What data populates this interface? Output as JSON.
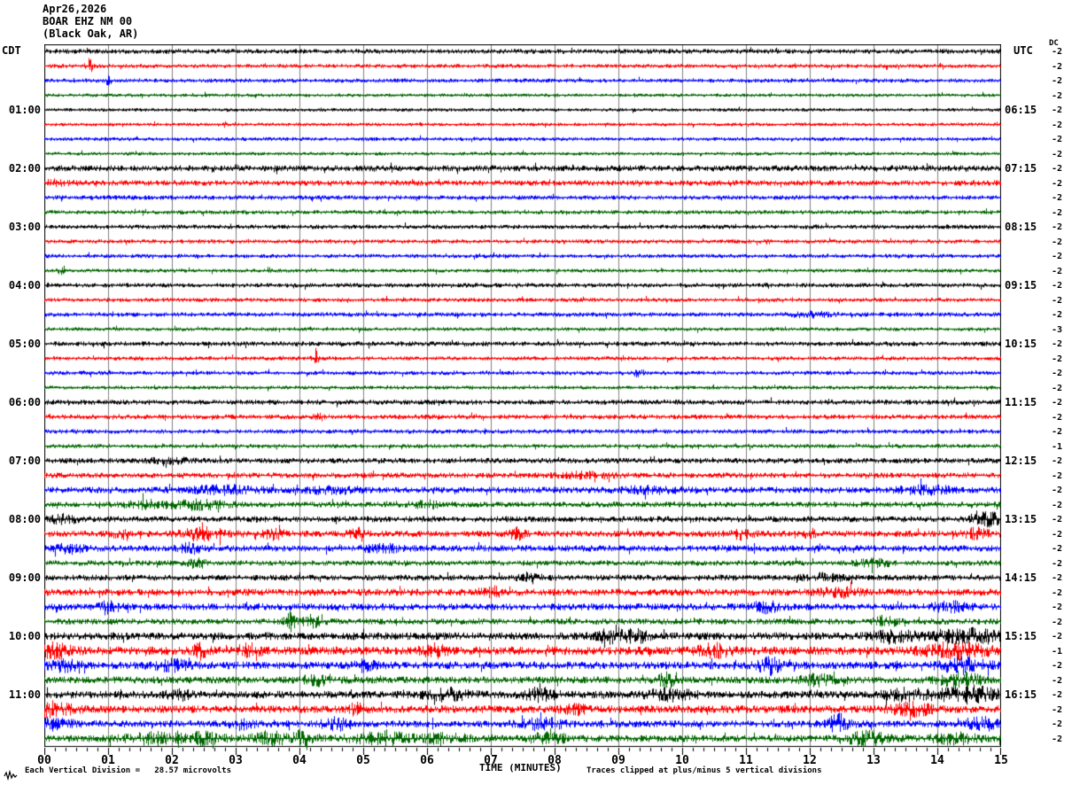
{
  "header": {
    "date": "Apr26,2026",
    "station": "BOAR EHZ NM 00",
    "location": "(Black Oak, AR)"
  },
  "axes": {
    "left_label": "CDT",
    "right_label": "UTC",
    "dc_label": "DC",
    "left_hour_labels": [
      "01:00",
      "02:00",
      "03:00",
      "04:00",
      "05:00",
      "06:00",
      "07:00",
      "08:00",
      "09:00",
      "10:00",
      "11:00"
    ],
    "right_hour_labels": [
      "06:15",
      "07:15",
      "08:15",
      "09:15",
      "10:15",
      "11:15",
      "12:15",
      "13:15",
      "14:15",
      "15:15",
      "16:15"
    ],
    "x_tick_labels": [
      "00",
      "01",
      "02",
      "03",
      "04",
      "05",
      "06",
      "07",
      "08",
      "09",
      "10",
      "11",
      "12",
      "13",
      "14",
      "15"
    ],
    "x_title": "TIME (MINUTES)"
  },
  "footer": {
    "scale_note": "Each Vertical Division =   28.57 microvolts",
    "clip_note": "Traces clipped at plus/minus 5 vertical divisions"
  },
  "colors": {
    "black": "#000000",
    "red": "#ff0000",
    "blue": "#0000ff",
    "green": "#006600",
    "grid": "#7f7f7f"
  },
  "chart_data": {
    "type": "line",
    "title": "BOAR EHZ NM 00 (Black Oak, AR) webicorder, Apr26,2026",
    "x_axis": {
      "title": "TIME (MINUTES)",
      "range_minutes": [
        0,
        15
      ],
      "major_tick_minutes": 1,
      "minor_tick_seconds": 10,
      "grid": "vertical-per-minute"
    },
    "rows_note": "48 rows of 15 minutes each; color cycles black/red/blue/green; amp = baseline noise envelope (px), bursts = [minute, sigma_minutes, extra_amp_px]; dc = DC offset value printed at right",
    "rows": [
      {
        "cdt_start": "00:00",
        "color": "black",
        "dc": -2,
        "amp": 1.5,
        "bursts": []
      },
      {
        "cdt_start": "00:15",
        "color": "red",
        "dc": -2,
        "amp": 1.3,
        "bursts": [
          [
            0.7,
            0.04,
            4.0
          ]
        ]
      },
      {
        "cdt_start": "00:30",
        "color": "blue",
        "dc": -2,
        "amp": 1.3,
        "bursts": [
          [
            1.0,
            0.03,
            2.5
          ]
        ]
      },
      {
        "cdt_start": "00:45",
        "color": "green",
        "dc": -2,
        "amp": 1.1,
        "bursts": []
      },
      {
        "cdt_start": "01:00",
        "color": "black",
        "dc": -2,
        "amp": 1.1,
        "bursts": []
      },
      {
        "cdt_start": "01:15",
        "color": "red",
        "dc": -2,
        "amp": 1.1,
        "bursts": []
      },
      {
        "cdt_start": "01:30",
        "color": "blue",
        "dc": -2,
        "amp": 1.2,
        "bursts": []
      },
      {
        "cdt_start": "01:45",
        "color": "green",
        "dc": -2,
        "amp": 1.1,
        "bursts": []
      },
      {
        "cdt_start": "02:00",
        "color": "black",
        "dc": -2,
        "amp": 1.9,
        "bursts": []
      },
      {
        "cdt_start": "02:15",
        "color": "red",
        "dc": -2,
        "amp": 1.7,
        "bursts": [
          [
            0.15,
            0.15,
            1.5
          ]
        ]
      },
      {
        "cdt_start": "02:30",
        "color": "blue",
        "dc": -2,
        "amp": 1.4,
        "bursts": []
      },
      {
        "cdt_start": "02:45",
        "color": "green",
        "dc": -2,
        "amp": 1.3,
        "bursts": []
      },
      {
        "cdt_start": "03:00",
        "color": "black",
        "dc": -2,
        "amp": 1.4,
        "bursts": []
      },
      {
        "cdt_start": "03:15",
        "color": "red",
        "dc": -2,
        "amp": 1.3,
        "bursts": []
      },
      {
        "cdt_start": "03:30",
        "color": "blue",
        "dc": -2,
        "amp": 1.3,
        "bursts": []
      },
      {
        "cdt_start": "03:45",
        "color": "green",
        "dc": -2,
        "amp": 1.2,
        "bursts": [
          [
            0.25,
            0.04,
            2.5
          ]
        ]
      },
      {
        "cdt_start": "04:00",
        "color": "black",
        "dc": -2,
        "amp": 1.4,
        "bursts": []
      },
      {
        "cdt_start": "04:15",
        "color": "red",
        "dc": -2,
        "amp": 1.3,
        "bursts": []
      },
      {
        "cdt_start": "04:30",
        "color": "blue",
        "dc": -2,
        "amp": 1.4,
        "bursts": [
          [
            12.0,
            0.25,
            1.2
          ]
        ]
      },
      {
        "cdt_start": "04:45",
        "color": "green",
        "dc": -3,
        "amp": 1.2,
        "bursts": []
      },
      {
        "cdt_start": "05:00",
        "color": "black",
        "dc": -2,
        "amp": 1.5,
        "bursts": []
      },
      {
        "cdt_start": "05:15",
        "color": "red",
        "dc": -2,
        "amp": 1.3,
        "bursts": [
          [
            4.25,
            0.03,
            5.5
          ]
        ]
      },
      {
        "cdt_start": "05:30",
        "color": "blue",
        "dc": -2,
        "amp": 1.3,
        "bursts": [
          [
            9.3,
            0.05,
            2.0
          ]
        ]
      },
      {
        "cdt_start": "05:45",
        "color": "green",
        "dc": -2,
        "amp": 1.2,
        "bursts": []
      },
      {
        "cdt_start": "06:00",
        "color": "black",
        "dc": -2,
        "amp": 1.6,
        "bursts": []
      },
      {
        "cdt_start": "06:15",
        "color": "red",
        "dc": -2,
        "amp": 1.5,
        "bursts": [
          [
            4.3,
            0.05,
            2.0
          ]
        ]
      },
      {
        "cdt_start": "06:30",
        "color": "blue",
        "dc": -2,
        "amp": 1.4,
        "bursts": []
      },
      {
        "cdt_start": "06:45",
        "color": "green",
        "dc": -1,
        "amp": 1.3,
        "bursts": []
      },
      {
        "cdt_start": "07:00",
        "color": "black",
        "dc": -2,
        "amp": 1.7,
        "bursts": [
          [
            2.0,
            0.25,
            1.2
          ]
        ]
      },
      {
        "cdt_start": "07:15",
        "color": "red",
        "dc": -2,
        "amp": 1.7,
        "bursts": [
          [
            8.5,
            0.3,
            1.5
          ]
        ]
      },
      {
        "cdt_start": "07:30",
        "color": "blue",
        "dc": -2,
        "amp": 2.0,
        "bursts": [
          [
            2.8,
            0.35,
            2.0
          ],
          [
            4.5,
            0.3,
            1.6
          ],
          [
            9.5,
            0.3,
            1.6
          ],
          [
            13.8,
            0.3,
            2.0
          ]
        ]
      },
      {
        "cdt_start": "07:45",
        "color": "green",
        "dc": -2,
        "amp": 1.8,
        "bursts": [
          [
            1.6,
            0.2,
            2.0
          ],
          [
            2.4,
            0.3,
            2.4
          ],
          [
            6.0,
            0.2,
            1.6
          ]
        ]
      },
      {
        "cdt_start": "08:00",
        "color": "black",
        "dc": -2,
        "amp": 1.9,
        "bursts": [
          [
            0.3,
            0.15,
            2.0
          ],
          [
            14.8,
            0.15,
            3.5
          ]
        ]
      },
      {
        "cdt_start": "08:15",
        "color": "red",
        "dc": -2,
        "amp": 2.0,
        "bursts": [
          [
            1.2,
            0.08,
            3.0
          ],
          [
            2.5,
            0.22,
            3.2
          ],
          [
            3.6,
            0.12,
            2.6
          ],
          [
            4.9,
            0.08,
            3.0
          ],
          [
            7.4,
            0.08,
            3.0
          ],
          [
            10.9,
            0.12,
            2.6
          ],
          [
            12.0,
            0.08,
            2.2
          ],
          [
            14.6,
            0.15,
            2.6
          ]
        ]
      },
      {
        "cdt_start": "08:30",
        "color": "blue",
        "dc": -2,
        "amp": 2.0,
        "bursts": [
          [
            0.4,
            0.15,
            2.2
          ],
          [
            2.3,
            0.12,
            3.0
          ],
          [
            5.3,
            0.2,
            1.8
          ]
        ]
      },
      {
        "cdt_start": "08:45",
        "color": "green",
        "dc": -2,
        "amp": 1.7,
        "bursts": [
          [
            2.4,
            0.1,
            2.2
          ],
          [
            13.0,
            0.2,
            1.8
          ]
        ]
      },
      {
        "cdt_start": "09:00",
        "color": "black",
        "dc": -2,
        "amp": 1.9,
        "bursts": [
          [
            7.6,
            0.12,
            2.6
          ],
          [
            12.2,
            0.2,
            1.8
          ]
        ]
      },
      {
        "cdt_start": "09:15",
        "color": "red",
        "dc": -2,
        "amp": 2.2,
        "bursts": [
          [
            7.0,
            0.12,
            2.6
          ],
          [
            12.5,
            0.25,
            2.2
          ]
        ]
      },
      {
        "cdt_start": "09:30",
        "color": "blue",
        "dc": -2,
        "amp": 2.2,
        "bursts": [
          [
            1.0,
            0.12,
            2.6
          ],
          [
            11.3,
            0.15,
            3.0
          ],
          [
            14.2,
            0.2,
            2.2
          ]
        ]
      },
      {
        "cdt_start": "09:45",
        "color": "green",
        "dc": -2,
        "amp": 1.9,
        "bursts": [
          [
            3.85,
            0.06,
            5.5
          ],
          [
            4.2,
            0.1,
            3.2
          ],
          [
            13.2,
            0.12,
            3.0
          ]
        ]
      },
      {
        "cdt_start": "10:00",
        "color": "black",
        "dc": -2,
        "amp": 2.4,
        "bursts": [
          [
            8.9,
            0.18,
            3.4
          ],
          [
            9.3,
            0.12,
            2.6
          ],
          [
            13.3,
            0.22,
            3.4
          ],
          [
            14.5,
            0.35,
            3.4
          ]
        ]
      },
      {
        "cdt_start": "10:15",
        "color": "red",
        "dc": -1,
        "amp": 2.7,
        "bursts": [
          [
            0.15,
            0.18,
            3.4
          ],
          [
            2.45,
            0.08,
            3.4
          ],
          [
            3.2,
            0.12,
            3.0
          ],
          [
            6.1,
            0.12,
            3.0
          ],
          [
            10.5,
            0.18,
            3.0
          ],
          [
            14.3,
            0.35,
            3.4
          ]
        ]
      },
      {
        "cdt_start": "10:30",
        "color": "blue",
        "dc": -2,
        "amp": 2.4,
        "bursts": [
          [
            0.3,
            0.18,
            2.6
          ],
          [
            2.0,
            0.18,
            2.6
          ],
          [
            5.0,
            0.12,
            2.6
          ],
          [
            11.35,
            0.12,
            4.5
          ],
          [
            14.4,
            0.25,
            4.0
          ]
        ]
      },
      {
        "cdt_start": "10:45",
        "color": "green",
        "dc": -2,
        "amp": 2.2,
        "bursts": [
          [
            4.3,
            0.18,
            2.6
          ],
          [
            9.75,
            0.08,
            4.5
          ],
          [
            12.1,
            0.18,
            2.6
          ],
          [
            14.35,
            0.2,
            4.5
          ]
        ]
      },
      {
        "cdt_start": "11:00",
        "color": "black",
        "dc": -2,
        "amp": 2.4,
        "bursts": [
          [
            2.1,
            0.12,
            2.6
          ],
          [
            6.3,
            0.22,
            3.0
          ],
          [
            7.75,
            0.18,
            3.0
          ],
          [
            9.8,
            0.25,
            2.6
          ],
          [
            13.5,
            0.25,
            2.6
          ],
          [
            14.5,
            0.35,
            4.0
          ]
        ]
      },
      {
        "cdt_start": "11:15",
        "color": "red",
        "dc": -2,
        "amp": 2.4,
        "bursts": [
          [
            0.1,
            0.25,
            3.4
          ],
          [
            4.9,
            0.08,
            3.0
          ],
          [
            8.3,
            0.12,
            2.6
          ],
          [
            13.6,
            0.2,
            3.4
          ]
        ]
      },
      {
        "cdt_start": "11:30",
        "color": "blue",
        "dc": -2,
        "amp": 2.2,
        "bursts": [
          [
            0.15,
            0.18,
            3.4
          ],
          [
            3.1,
            0.12,
            2.6
          ],
          [
            4.6,
            0.18,
            3.0
          ],
          [
            7.8,
            0.22,
            3.0
          ],
          [
            12.45,
            0.12,
            5.0
          ],
          [
            14.7,
            0.15,
            3.4
          ]
        ]
      },
      {
        "cdt_start": "11:45",
        "color": "green",
        "dc": -2,
        "amp": 2.2,
        "bursts": [
          [
            1.7,
            0.3,
            2.6
          ],
          [
            2.5,
            0.2,
            3.0
          ],
          [
            3.5,
            0.22,
            3.4
          ],
          [
            4.05,
            0.1,
            4.0
          ],
          [
            5.3,
            0.35,
            3.0
          ],
          [
            6.3,
            0.2,
            3.0
          ],
          [
            7.9,
            0.2,
            2.6
          ],
          [
            12.9,
            0.22,
            3.4
          ],
          [
            14.3,
            0.25,
            2.6
          ]
        ]
      }
    ]
  }
}
